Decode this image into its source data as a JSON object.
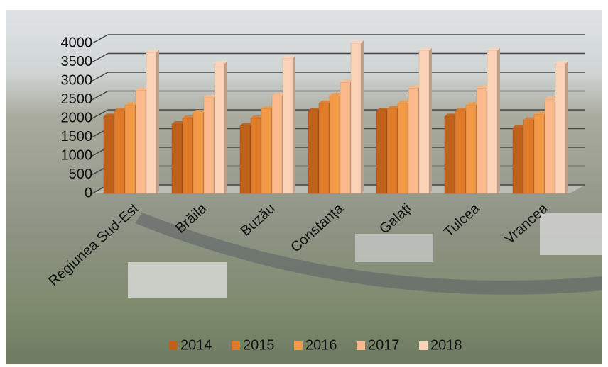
{
  "chart_data": {
    "type": "bar",
    "categories": [
      "Regiunea Sud-Est",
      "Brăila",
      "Buzău",
      "Constanța",
      "Galați",
      "Tulcea",
      "Vrancea"
    ],
    "series": [
      {
        "name": "2014",
        "color": "#c0601a",
        "values": [
          2050,
          1850,
          1800,
          2200,
          2200,
          2050,
          1750
        ]
      },
      {
        "name": "2015",
        "color": "#e07b2a",
        "values": [
          2200,
          2000,
          2000,
          2400,
          2250,
          2200,
          1950
        ]
      },
      {
        "name": "2016",
        "color": "#f39a4a",
        "values": [
          2350,
          2150,
          2250,
          2600,
          2400,
          2350,
          2100
        ]
      },
      {
        "name": "2017",
        "color": "#f9b98a",
        "values": [
          2750,
          2550,
          2600,
          2950,
          2800,
          2800,
          2500
        ]
      },
      {
        "name": "2018",
        "color": "#fcd3b8",
        "values": [
          3750,
          3450,
          3600,
          4000,
          3800,
          3800,
          3450
        ]
      }
    ],
    "ylim": [
      0,
      4000
    ],
    "yticks": [
      0,
      500,
      1000,
      1500,
      2000,
      2500,
      3000,
      3500,
      4000
    ],
    "grid": true,
    "legend": "bottom"
  }
}
